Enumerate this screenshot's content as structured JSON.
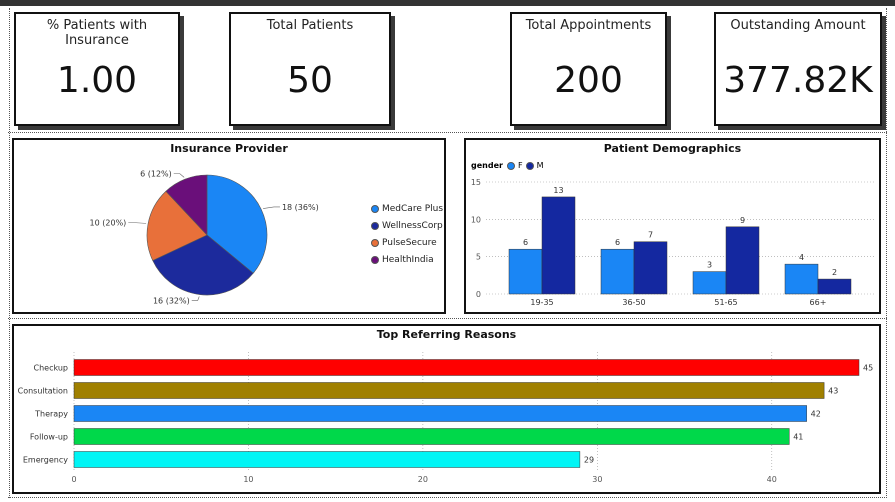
{
  "kpis": [
    {
      "title": "% Patients with Insurance",
      "value": "1.00"
    },
    {
      "title": "Total Patients",
      "value": "50"
    },
    {
      "title": "Total Appointments",
      "value": "200"
    },
    {
      "title": "Outstanding Amount",
      "value": "377.82K"
    }
  ],
  "colors": {
    "medcare": "#1a86f5",
    "wellness": "#1c2a9c",
    "pulse": "#e8703a",
    "healthindia": "#6a0f7a",
    "female": "#1a86f5",
    "male": "#1428a0"
  },
  "chart_data": [
    {
      "type": "pie",
      "title": "Insurance Provider",
      "slices": [
        {
          "label": "MedCare Plus",
          "value": 18,
          "data_label": "18 (36%)",
          "color": "#1a86f5"
        },
        {
          "label": "WellnessCorp",
          "value": 16,
          "data_label": "16 (32%)",
          "color": "#1c2a9c"
        },
        {
          "label": "PulseSecure",
          "value": 10,
          "data_label": "10 (20%)",
          "color": "#e8703a"
        },
        {
          "label": "HealthIndia",
          "value": 6,
          "data_label": "6 (12%)",
          "color": "#6a0f7a"
        }
      ],
      "legend_position": "right"
    },
    {
      "type": "bar",
      "title": "Patient Demographics",
      "legend_title": "gender",
      "categories": [
        "19-35",
        "36-50",
        "51-65",
        "66+"
      ],
      "series": [
        {
          "name": "F",
          "values": [
            6,
            6,
            3,
            4
          ],
          "color": "#1a86f5"
        },
        {
          "name": "M",
          "values": [
            13,
            7,
            9,
            2
          ],
          "color": "#1428a0"
        }
      ],
      "ylim": [
        0,
        15
      ],
      "yticks": [
        0,
        5,
        10,
        15
      ],
      "grid": true,
      "legend_position": "top-left"
    },
    {
      "type": "bar",
      "orientation": "horizontal",
      "title": "Top Referring Reasons",
      "categories": [
        "Checkup",
        "Consultation",
        "Therapy",
        "Follow-up",
        "Emergency"
      ],
      "values": [
        45,
        43,
        42,
        41,
        29
      ],
      "colors": [
        "#ff0000",
        "#a08000",
        "#1a86f5",
        "#00d84a",
        "#00f5f5"
      ],
      "xlim": [
        0,
        45
      ],
      "xticks": [
        0,
        10,
        20,
        30,
        40
      ],
      "grid": true
    }
  ]
}
